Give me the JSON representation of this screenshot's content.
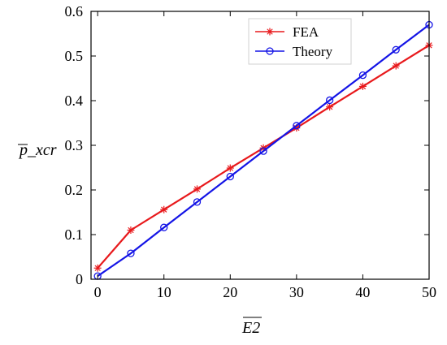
{
  "chart_data": {
    "type": "line",
    "title": "",
    "xlabel": "E2",
    "ylabel": "p_xcr",
    "xlim": [
      -1,
      50
    ],
    "ylim": [
      0,
      0.6
    ],
    "xticks": [
      0,
      10,
      20,
      30,
      40,
      50
    ],
    "yticks": [
      0,
      0.1,
      0.2,
      0.3,
      0.4,
      0.5,
      0.6
    ],
    "xtick_labels": [
      "0",
      "10",
      "20",
      "30",
      "40",
      "50"
    ],
    "ytick_labels": [
      "0",
      "0.1",
      "0.2",
      "0.3",
      "0.4",
      "0.5",
      "0.6"
    ],
    "grid": false,
    "legend_position": "top-right",
    "series": [
      {
        "name": "FEA",
        "color": "#e8191c",
        "marker": "star",
        "x": [
          0,
          5,
          10,
          15,
          20,
          25,
          30,
          35,
          40,
          45,
          50
        ],
        "y": [
          0.025,
          0.11,
          0.156,
          0.202,
          0.249,
          0.294,
          0.339,
          0.386,
          0.432,
          0.478,
          0.524
        ]
      },
      {
        "name": "Theory",
        "color": "#1414e6",
        "marker": "circle",
        "x": [
          0,
          5,
          10,
          15,
          20,
          25,
          30,
          35,
          40,
          45,
          50
        ],
        "y": [
          0.007,
          0.058,
          0.116,
          0.173,
          0.23,
          0.287,
          0.344,
          0.401,
          0.457,
          0.514,
          0.57
        ]
      }
    ]
  }
}
